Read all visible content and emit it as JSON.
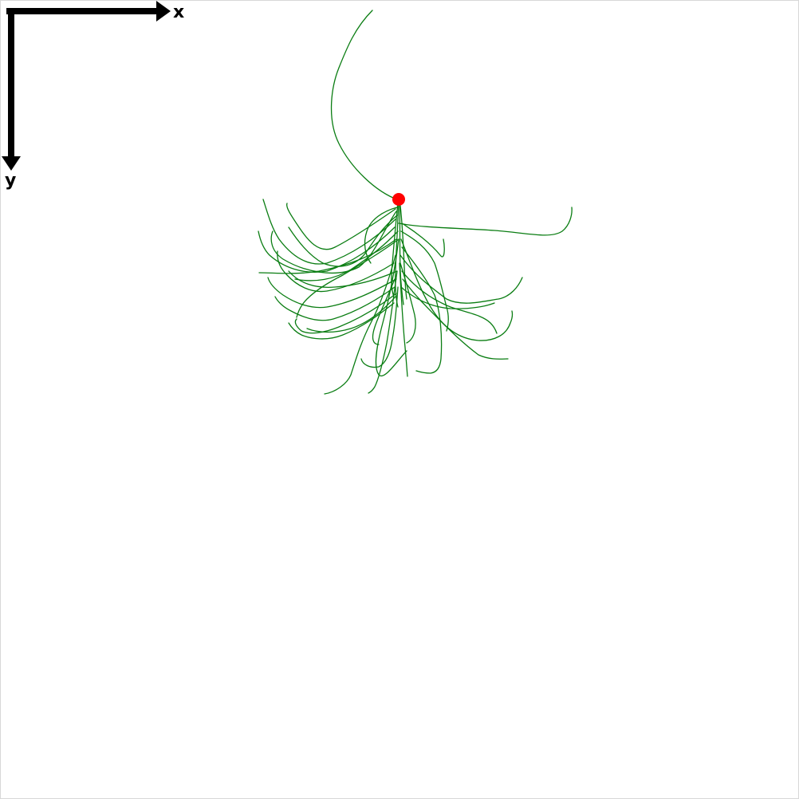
{
  "axes": {
    "x_label": "x",
    "y_label": "y",
    "color": "#000000"
  },
  "structure": {
    "type": "trajectory-bundle",
    "stroke_color": "#0a7d12",
    "origin_color": "#ff0000",
    "origin_marker": "circle"
  }
}
